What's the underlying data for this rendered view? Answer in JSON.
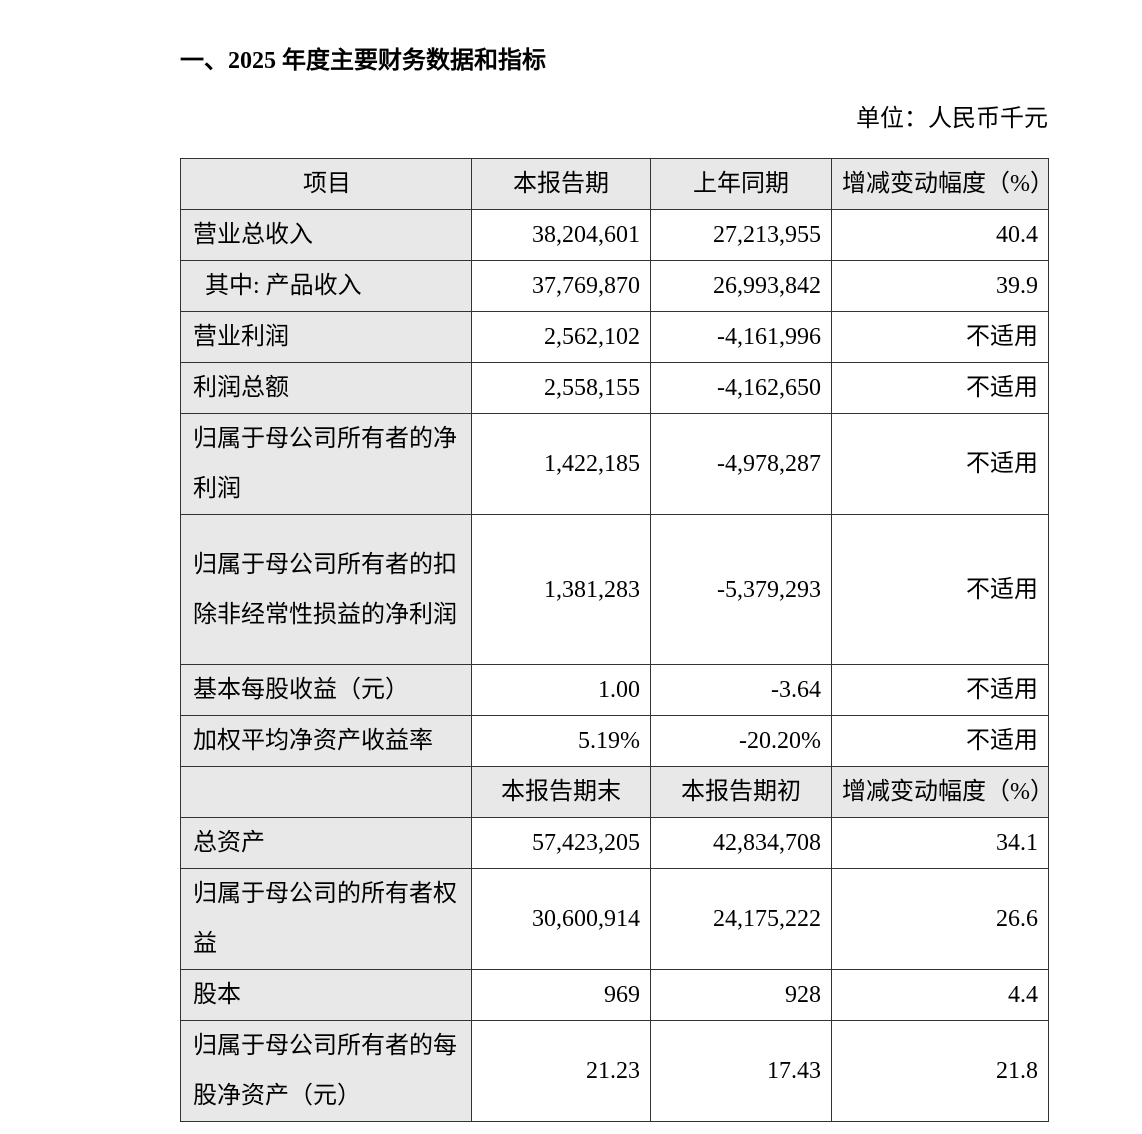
{
  "title": "一、2025 年度主要财务数据和指标",
  "unit": "单位：人民币千元",
  "table": {
    "header1": [
      "项目",
      "本报告期",
      "上年同期",
      "增减变动幅度（%）"
    ],
    "rows1": [
      {
        "label": "营业总收入",
        "current": "38,204,601",
        "prior": "27,213,955",
        "change": "40.4"
      },
      {
        "label": "其中: 产品收入",
        "current": "37,769,870",
        "prior": "26,993,842",
        "change": "39.9"
      },
      {
        "label": "营业利润",
        "current": "2,562,102",
        "prior": "-4,161,996",
        "change": "不适用"
      },
      {
        "label": "利润总额",
        "current": "2,558,155",
        "prior": "-4,162,650",
        "change": "不适用"
      },
      {
        "label": "归属于母公司所有者的净利润",
        "current": "1,422,185",
        "prior": "-4,978,287",
        "change": "不适用"
      },
      {
        "label": "归属于母公司所有者的扣除非经常性损益的净利润",
        "current": "1,381,283",
        "prior": "-5,379,293",
        "change": "不适用"
      },
      {
        "label": "基本每股收益（元）",
        "current": "1.00",
        "prior": "-3.64",
        "change": "不适用"
      },
      {
        "label": "加权平均净资产收益率",
        "current": "5.19%",
        "prior": "-20.20%",
        "change": "不适用"
      }
    ],
    "header2": [
      "",
      "本报告期末",
      "本报告期初",
      "增减变动幅度（%）"
    ],
    "rows2": [
      {
        "label": "总资产",
        "current": "57,423,205",
        "prior": "42,834,708",
        "change": "34.1"
      },
      {
        "label": "归属于母公司的所有者权益",
        "current": "30,600,914",
        "prior": "24,175,222",
        "change": "26.6"
      },
      {
        "label": "股本",
        "current": "969",
        "prior": "928",
        "change": "4.4"
      },
      {
        "label": "归属于母公司所有者的每股净资产（元）",
        "current": "21.23",
        "prior": "17.43",
        "change": "21.8"
      }
    ]
  }
}
